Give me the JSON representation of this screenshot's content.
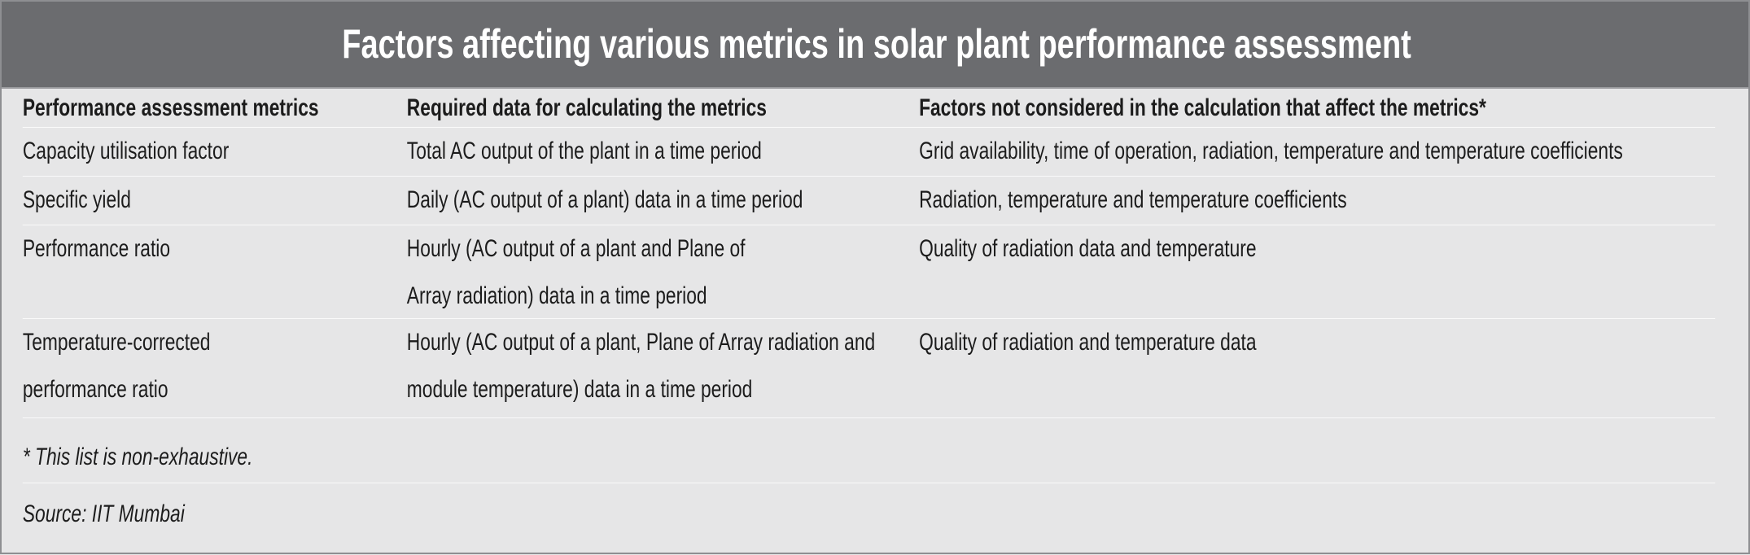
{
  "title": "Factors affecting various metrics in solar plant performance assessment",
  "columns": [
    "Performance assessment metrics",
    "Required data for calculating the metrics",
    "Factors not considered in the calculation that affect the metrics*"
  ],
  "rows": [
    [
      "Capacity utilisation factor",
      "Total AC output of the plant in a time period",
      "Grid availability, time of operation, radiation, temperature and temperature coefficients"
    ],
    [
      "Specific yield",
      "Daily (AC output of a plant) data in a time period",
      "Radiation, temperature and temperature coefficients"
    ],
    [
      "Performance ratio",
      "Hourly (AC output of a plant and Plane of Array radiation) data in a time period",
      "Quality of radiation data and temperature"
    ],
    [
      "Temperature-corrected performance ratio",
      "Hourly (AC output of a plant, Plane of Array radiation and module temperature) data in a time period",
      "Quality of radiation and temperature data"
    ]
  ],
  "footnote": "* This list is non-exhaustive.",
  "source": "Source: IIT Mumbai"
}
